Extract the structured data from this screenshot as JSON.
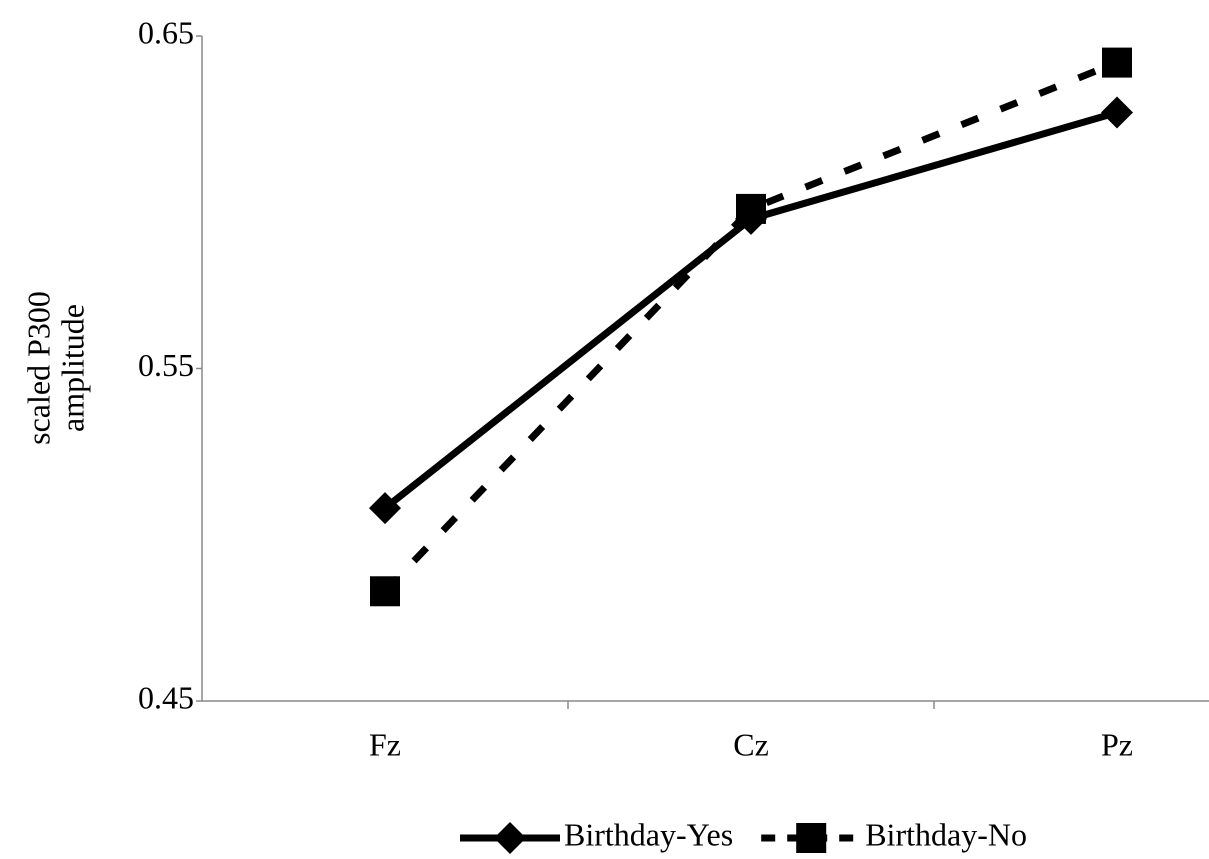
{
  "chart_data": {
    "type": "line",
    "ylabel": [
      "scaled P300",
      "amplitude"
    ],
    "categories": [
      "Fz",
      "Cz",
      "Pz"
    ],
    "series": [
      {
        "name": "Birthday-Yes",
        "color": "#000000",
        "line_style": "solid",
        "marker": "diamond",
        "values": [
          0.508,
          0.595,
          0.627
        ]
      },
      {
        "name": "Birthday-No",
        "color": "#000000",
        "line_style": "dashed",
        "marker": "square",
        "values": [
          0.483,
          0.598,
          0.642
        ]
      }
    ],
    "ylim": [
      0.45,
      0.65
    ],
    "yticks": [
      0.45,
      0.55,
      0.65
    ],
    "grid": false,
    "legend": "bottom"
  }
}
